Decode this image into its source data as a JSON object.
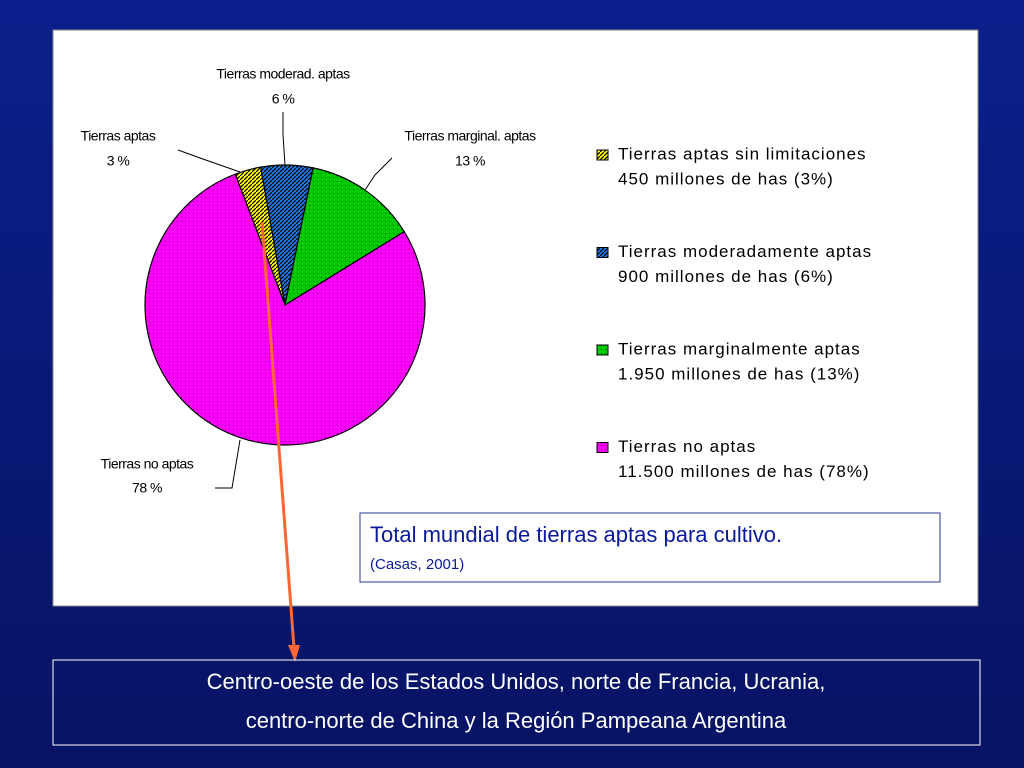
{
  "chart_data": {
    "type": "pie",
    "title": "Total mundial de tierras aptas para cultivo.",
    "source": "(Casas, 2001)",
    "categories": [
      "Tierras aptas",
      "Tierras moderad. aptas",
      "Tierras marginal. aptas",
      "Tierras no aptas"
    ],
    "values": [
      3,
      6,
      13,
      78
    ],
    "value_labels": [
      "3 %",
      "6 %",
      "13 %",
      "78 %"
    ],
    "colors": [
      "#ffff00",
      "#1e78e6",
      "#00cc00",
      "#ff00ff"
    ],
    "legend_labels": [
      "Tierras aptas sin limitaciones",
      "Tierras moderadamente aptas",
      "Tierras marginalmente aptas",
      "Tierras no aptas"
    ],
    "legend_details": [
      "450 millones de has (3%)",
      "900 millones de has (6%)",
      "1.950 millones de has (13%)",
      "11.500 millones de has (78%)"
    ]
  },
  "footer_lines": [
    "Centro-oeste de los Estados Unidos, norte de Francia, Ucrania,",
    "centro-norte de China y la Región Pampeana Argentina"
  ]
}
